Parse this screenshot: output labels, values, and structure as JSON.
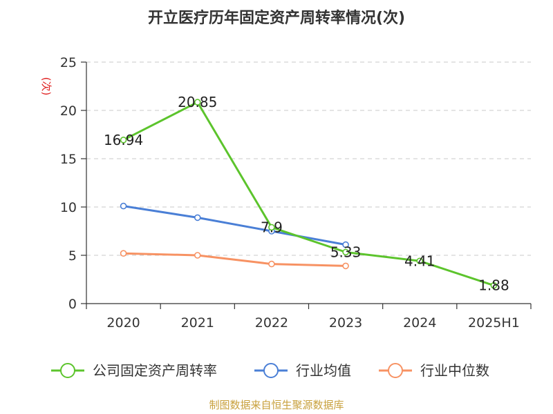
{
  "chart_data": {
    "type": "line",
    "title": "开立医疗历年固定资产周转率情况(次)",
    "ylabel": "(次)",
    "categories": [
      "2020",
      "2021",
      "2022",
      "2023",
      "2024",
      "2025H1"
    ],
    "ylim": [
      0,
      25
    ],
    "yticks": [
      0,
      5,
      10,
      15,
      20,
      25
    ],
    "grid": true,
    "legend_position": "bottom",
    "series": [
      {
        "name": "公司固定资产周转率",
        "color": "#5cc42c",
        "values": [
          16.94,
          20.85,
          7.9,
          5.33,
          4.41,
          1.88
        ],
        "labels": [
          "16.94",
          "20.85",
          "7.9",
          "5.33",
          "4.41",
          "1.88"
        ]
      },
      {
        "name": "行业均值",
        "color": "#4a7fd6",
        "values": [
          10.1,
          8.9,
          7.5,
          6.1,
          null,
          null
        ]
      },
      {
        "name": "行业中位数",
        "color": "#f79263",
        "values": [
          5.2,
          5.0,
          4.1,
          3.9,
          null,
          null
        ]
      }
    ],
    "source": "制图数据来自恒生聚源数据库"
  }
}
